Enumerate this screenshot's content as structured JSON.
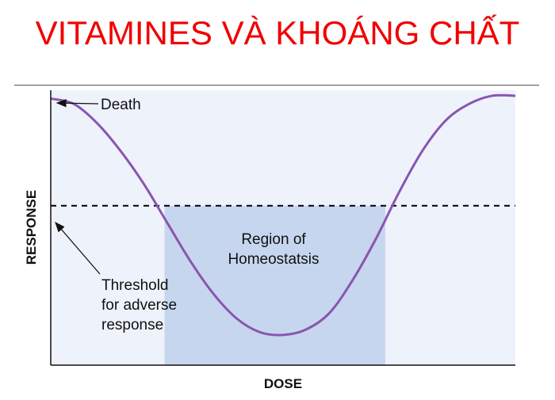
{
  "slide": {
    "title": "VITAMINES VÀ KHOÁNG CHẤT"
  },
  "colors": {
    "title": "#f00000",
    "plot_bg": "#eef2fb",
    "region_fill": "#c6d6ee",
    "curve": "#8a55b0",
    "threshold": "#000000"
  },
  "chart_data": {
    "type": "line",
    "title": "",
    "xlabel": "DOSE",
    "ylabel": "RESPONSE",
    "xlim": [
      0,
      1
    ],
    "ylim": [
      0,
      1
    ],
    "grid": false,
    "series": [
      {
        "x": [
          0,
          0.05,
          0.1,
          0.15,
          0.2,
          0.25,
          0.3,
          0.35,
          0.4,
          0.45,
          0.5,
          0.55,
          0.6,
          0.65,
          0.7,
          0.75,
          0.8,
          0.85,
          0.9,
          0.95,
          1.0
        ],
        "y": [
          0.97,
          0.95,
          0.88,
          0.78,
          0.66,
          0.52,
          0.38,
          0.26,
          0.17,
          0.12,
          0.11,
          0.13,
          0.19,
          0.31,
          0.46,
          0.63,
          0.78,
          0.89,
          0.95,
          0.98,
          0.98
        ]
      }
    ],
    "threshold": {
      "y": 0.58,
      "label": "Threshold for adverse response"
    },
    "death_label": "Death",
    "region": {
      "x_start": 0.245,
      "x_end": 0.72,
      "label": "Region of Homeostatsis"
    }
  },
  "labels": {
    "death": "Death",
    "region_line1": "Region of",
    "region_line2": "Homeostatsis",
    "threshold_line1": "Threshold",
    "threshold_line2": "for adverse",
    "threshold_line3": "response"
  }
}
